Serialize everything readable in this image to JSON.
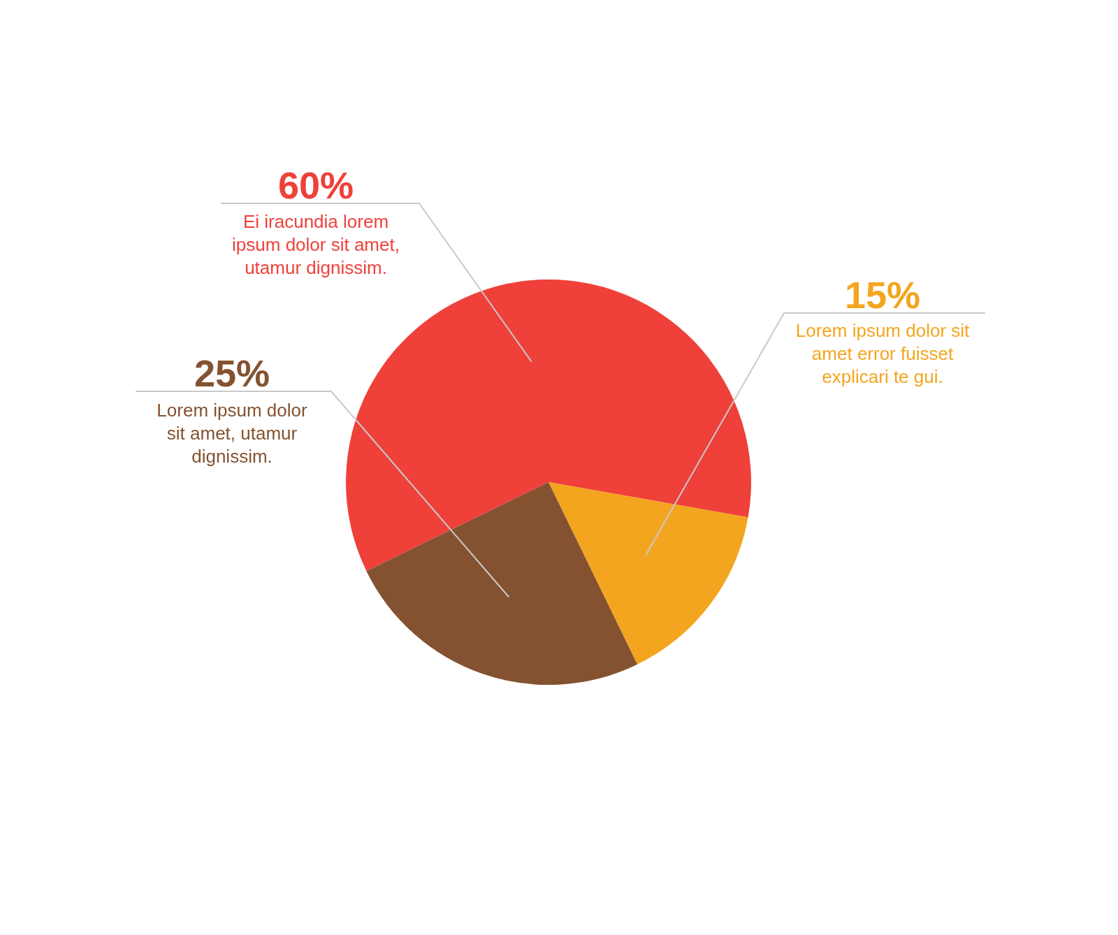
{
  "chart_data": {
    "type": "pie",
    "categories": [
      "Ei iracundia lorem ipsum dolor sit amet, utamur dignissim.",
      "Lorem ipsum dolor sit amet error fuisset explicari te gui.",
      "Lorem ipsum dolor sit amet, utamur dignissim."
    ],
    "values": [
      60,
      15,
      25
    ],
    "colors": [
      "#ef413a",
      "#f4a51f",
      "#845230"
    ],
    "value_labels": [
      "60%",
      "15%",
      "25%"
    ]
  }
}
